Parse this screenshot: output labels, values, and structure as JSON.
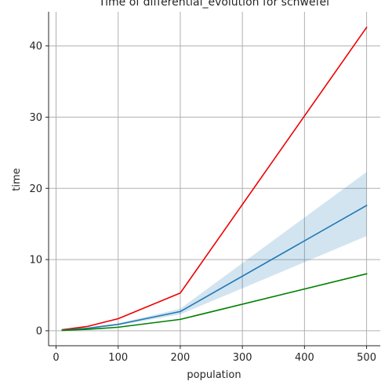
{
  "chart_data": {
    "type": "line",
    "title": "Time of differential_evolution for schwefel",
    "xlabel": "population",
    "ylabel": "time",
    "xlim": [
      -12,
      522
    ],
    "ylim": [
      -2.1,
      44.8
    ],
    "x_ticks": [
      0,
      100,
      200,
      300,
      400,
      500
    ],
    "y_ticks": [
      0,
      10,
      20,
      30,
      40
    ],
    "grid": true,
    "legend": "none",
    "series": [
      {
        "color": "#ee0000",
        "x": [
          10,
          50,
          100,
          200,
          500
        ],
        "values": [
          0.15,
          0.6,
          1.7,
          5.3,
          42.6
        ]
      },
      {
        "color": "#1f77b4",
        "band_color": "#1f77b4",
        "x": [
          10,
          50,
          100,
          200,
          500
        ],
        "values": [
          0.1,
          0.35,
          0.9,
          2.7,
          17.6
        ],
        "lower": [
          0.05,
          0.25,
          0.75,
          2.3,
          13.3
        ],
        "upper": [
          0.15,
          0.45,
          1.05,
          3.1,
          22.3
        ]
      },
      {
        "color": "#008000",
        "x": [
          10,
          50,
          100,
          200,
          500
        ],
        "values": [
          0.05,
          0.2,
          0.5,
          1.6,
          8.0
        ]
      }
    ]
  }
}
